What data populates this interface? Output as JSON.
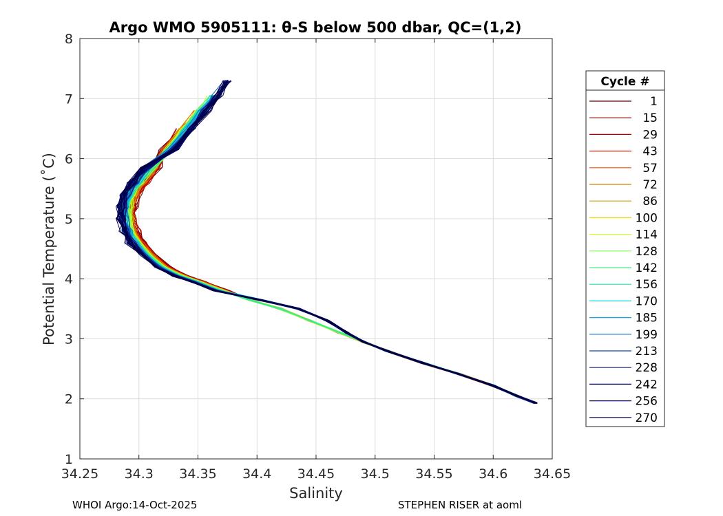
{
  "chart_data": {
    "type": "line",
    "title": "Argo WMO 5905111: θ-S below 500 dbar,  QC=(1,2)",
    "xlabel": "Salinity",
    "ylabel": "Potential Temperature (˚C)",
    "xlim": [
      34.25,
      34.65
    ],
    "ylim": [
      1,
      8
    ],
    "xticks": [
      "34.25",
      "34.3",
      "34.35",
      "34.4",
      "34.45",
      "34.5",
      "34.55",
      "34.6",
      "34.65"
    ],
    "yticks": [
      "1",
      "2",
      "3",
      "4",
      "5",
      "6",
      "7",
      "8"
    ],
    "grid": true,
    "legend": {
      "title": "Cycle #",
      "placement": "outside-right",
      "entries": [
        "1",
        "15",
        "29",
        "43",
        "57",
        "72",
        "86",
        "100",
        "114",
        "128",
        "142",
        "156",
        "170",
        "185",
        "199",
        "213",
        "228",
        "242",
        "256",
        "270"
      ],
      "colors": [
        "#5a0000",
        "#8b0000",
        "#b00000",
        "#d41c00",
        "#f24d00",
        "#d28000",
        "#c8a000",
        "#e8e000",
        "#c8ff30",
        "#80ff50",
        "#40f080",
        "#20e0b0",
        "#10d0e0",
        "#10a8e0",
        "#1070c0",
        "#1040a0",
        "#102080",
        "#000070",
        "#000050",
        "#000040"
      ]
    },
    "base_curve": {
      "S": [
        34.636,
        34.62,
        34.6,
        34.57,
        34.54,
        34.51,
        34.49,
        34.47,
        34.445,
        34.42,
        34.395,
        34.37,
        34.35,
        34.335,
        34.32,
        34.308,
        34.3,
        34.295,
        34.292,
        34.292,
        34.295,
        34.302,
        34.312,
        34.325,
        34.34,
        34.352,
        34.362,
        34.37
      ],
      "T": [
        1.93,
        2.05,
        2.22,
        2.42,
        2.6,
        2.8,
        2.95,
        3.1,
        3.3,
        3.5,
        3.64,
        3.8,
        3.95,
        4.05,
        4.2,
        4.4,
        4.6,
        4.8,
        5.0,
        5.2,
        5.4,
        5.6,
        5.85,
        6.15,
        6.5,
        6.8,
        7.05,
        7.3
      ]
    }
  },
  "footer": {
    "left": "WHOI Argo:14-Oct-2025",
    "right": "STEPHEN RISER at aoml"
  }
}
